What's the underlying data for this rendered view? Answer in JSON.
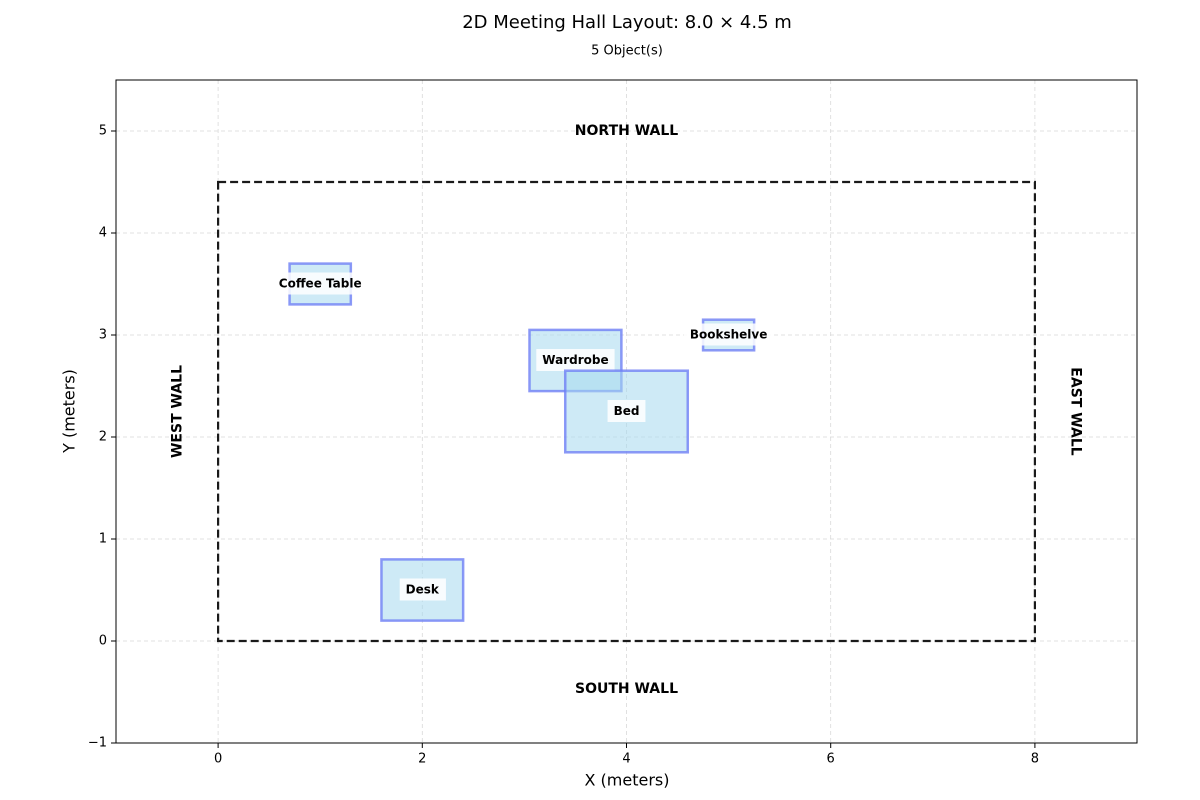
{
  "chart_data": {
    "type": "scatter",
    "title": "2D Meeting Hall Layout: 8.0 × 4.5 m",
    "subtitle": "5 Object(s)",
    "xlabel": "X (meters)",
    "ylabel": "Y (meters)",
    "xlim": [
      -1,
      9
    ],
    "ylim": [
      -1,
      5.5
    ],
    "xticks": [
      0,
      2,
      4,
      6,
      8
    ],
    "yticks": [
      -1,
      0,
      1,
      2,
      3,
      4,
      5
    ],
    "grid": true,
    "room": {
      "width": 8.0,
      "depth": 4.5
    },
    "walls": [
      {
        "label": "NORTH WALL",
        "x": 4.0,
        "y": 5.0,
        "rotation": 0
      },
      {
        "label": "SOUTH WALL",
        "x": 4.0,
        "y": -0.47,
        "rotation": 0
      },
      {
        "label": "WEST WALL",
        "x": -0.4,
        "y": 2.25,
        "rotation": -90
      },
      {
        "label": "EAST WALL",
        "x": 8.4,
        "y": 2.25,
        "rotation": 90
      }
    ],
    "objects": [
      {
        "label": "Coffee Table",
        "x": 0.7,
        "y": 3.3,
        "width": 0.6,
        "height": 0.4
      },
      {
        "label": "Wardrobe",
        "x": 3.05,
        "y": 2.45,
        "width": 0.9,
        "height": 0.6
      },
      {
        "label": "Bed",
        "x": 3.4,
        "y": 1.85,
        "width": 1.2,
        "height": 0.8
      },
      {
        "label": "Bookshelve",
        "x": 4.75,
        "y": 2.85,
        "width": 0.5,
        "height": 0.3
      },
      {
        "label": "Desk",
        "x": 1.6,
        "y": 0.2,
        "width": 0.8,
        "height": 0.6
      }
    ],
    "colors": {
      "object_fill": "#a6d8ef",
      "object_edge": "#6f7ff5",
      "room_outline": "#1a1a1a",
      "grid": "#d9d9d9"
    }
  }
}
